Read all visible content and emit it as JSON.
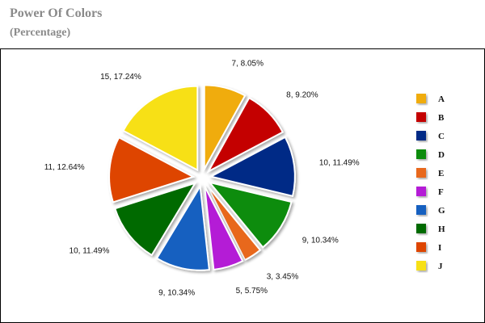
{
  "header": {
    "title": "Power Of Colors",
    "subtitle": "(Percentage)"
  },
  "chart_data": {
    "type": "pie",
    "title": "Power Of Colors",
    "subtitle": "(Percentage)",
    "categories": [
      "A",
      "B",
      "C",
      "D",
      "E",
      "F",
      "G",
      "H",
      "I",
      "J"
    ],
    "values": [
      7,
      8,
      10,
      9,
      3,
      5,
      9,
      10,
      11,
      15
    ],
    "labels": [
      "7, 8.05%",
      "8, 9.20%",
      "10, 11.49%",
      "9, 10.34%",
      "3, 3.45%",
      "5, 5.75%",
      "9, 10.34%",
      "10, 11.49%",
      "11, 12.64%",
      "15, 17.24%"
    ],
    "colors": [
      "#f0ac0a",
      "#c40000",
      "#002a86",
      "#0a8c0a",
      "#e8671a",
      "#b41bd6",
      "#1560c0",
      "#006b00",
      "#de4400",
      "#f7e019"
    ],
    "start_angle_deg": 0,
    "direction": "clockwise",
    "exploded": true,
    "legend_position": "right"
  }
}
